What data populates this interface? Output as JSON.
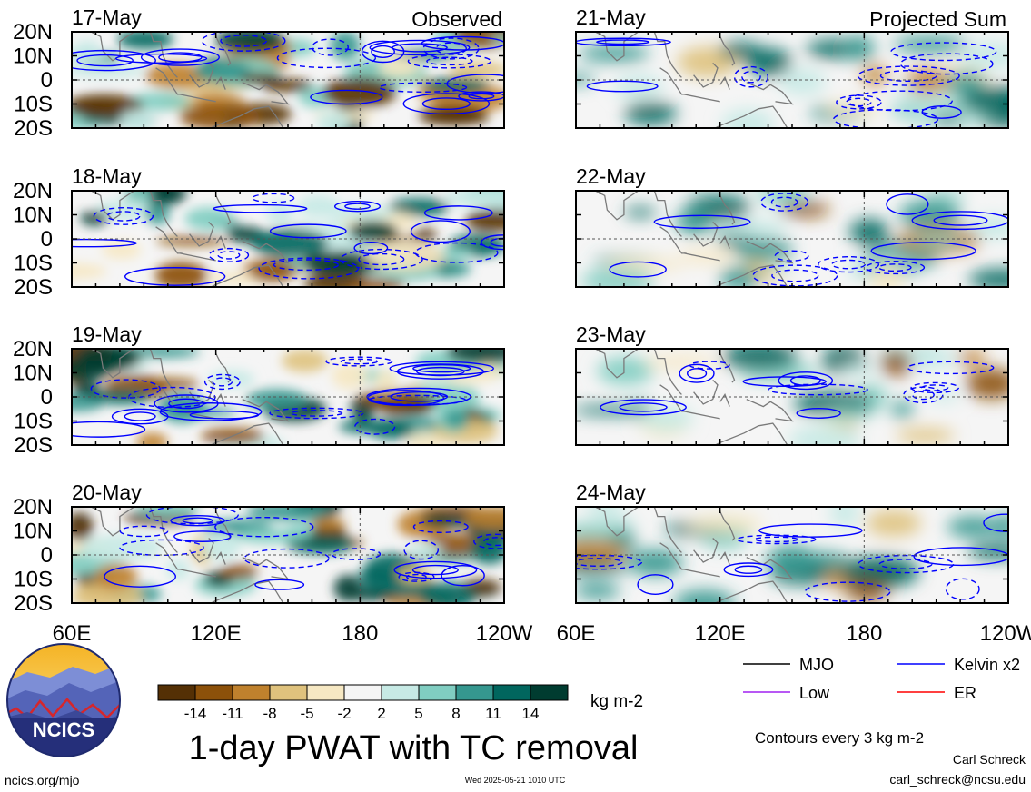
{
  "panels": [
    {
      "date": "17-May",
      "title": "Observed",
      "column": "left"
    },
    {
      "date": "18-May",
      "title": "",
      "column": "left"
    },
    {
      "date": "19-May",
      "title": "",
      "column": "left"
    },
    {
      "date": "20-May",
      "title": "",
      "column": "left"
    },
    {
      "date": "21-May",
      "title": "Projected Sum",
      "column": "right"
    },
    {
      "date": "22-May",
      "title": "",
      "column": "right"
    },
    {
      "date": "23-May",
      "title": "",
      "column": "right"
    },
    {
      "date": "24-May",
      "title": "",
      "column": "right"
    }
  ],
  "lat_labels": [
    "20N",
    "10N",
    "0",
    "10S",
    "20S"
  ],
  "lon_labels": [
    "60E",
    "120E",
    "180",
    "120W"
  ],
  "colorbar": {
    "labels": [
      "-14",
      "-11",
      "-8",
      "-5",
      "-2",
      "2",
      "5",
      "8",
      "11",
      "14"
    ],
    "colors": [
      "#543005",
      "#8c510a",
      "#bf812d",
      "#dfc27d",
      "#f6e8c3",
      "#f5f5f5",
      "#c7eae5",
      "#80cdc1",
      "#35978f",
      "#01665e",
      "#003c30"
    ],
    "units": "kg m-2"
  },
  "title": "1-day PWAT with TC removal",
  "legend": [
    {
      "label": "MJO",
      "color": "#000000"
    },
    {
      "label": "Kelvin x2",
      "color": "#0000ff"
    },
    {
      "label": "Low",
      "color": "#a020f0"
    },
    {
      "label": "ER",
      "color": "#ff0000"
    }
  ],
  "contour_note": "Contours every 3 kg m-2",
  "logo": {
    "text": "NCICS"
  },
  "footer": {
    "site": "ncics.org/mjo",
    "timestamp": "Wed 2025-05-21 1010 UTC",
    "author": "Carl Schreck",
    "email": "carl_schreck@ncsu.edu"
  }
}
